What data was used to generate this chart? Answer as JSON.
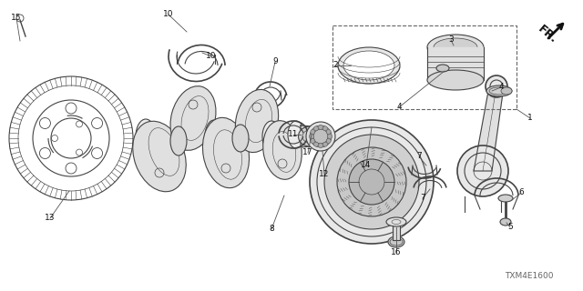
{
  "bg_color": "#ffffff",
  "lc": "#444444",
  "diagram_code": "TXM4E1600",
  "labels": [
    [
      "15",
      18,
      22
    ],
    [
      "13",
      60,
      238
    ],
    [
      "10",
      185,
      18
    ],
    [
      "10",
      228,
      62
    ],
    [
      "9",
      295,
      68
    ],
    [
      "11",
      320,
      148
    ],
    [
      "17",
      330,
      168
    ],
    [
      "8",
      295,
      248
    ],
    [
      "12",
      335,
      188
    ],
    [
      "2",
      375,
      62
    ],
    [
      "4",
      436,
      118
    ],
    [
      "3",
      490,
      48
    ],
    [
      "4",
      545,
      98
    ],
    [
      "1",
      580,
      128
    ],
    [
      "14",
      400,
      185
    ],
    [
      "7",
      460,
      175
    ],
    [
      "7",
      462,
      215
    ],
    [
      "16",
      435,
      278
    ],
    [
      "6",
      565,
      210
    ],
    [
      "5",
      555,
      248
    ]
  ]
}
